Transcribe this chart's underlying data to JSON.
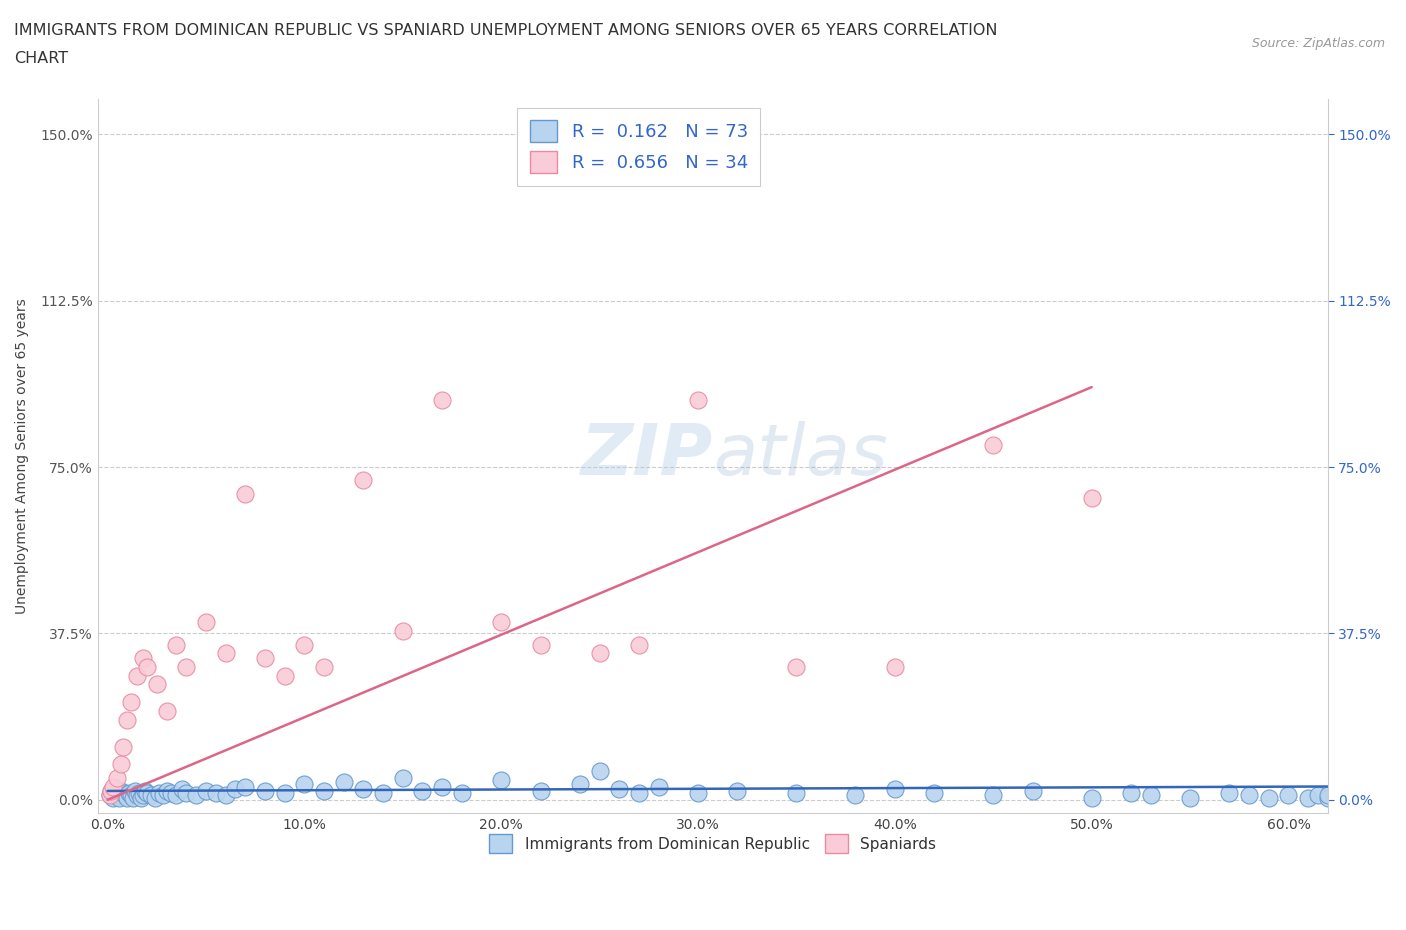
{
  "title_line1": "IMMIGRANTS FROM DOMINICAN REPUBLIC VS SPANIARD UNEMPLOYMENT AMONG SENIORS OVER 65 YEARS CORRELATION",
  "title_line2": "CHART",
  "source": "Source: ZipAtlas.com",
  "ylabel": "Unemployment Among Seniors over 65 years",
  "x_ticks": [
    0.0,
    10.0,
    20.0,
    30.0,
    40.0,
    50.0,
    60.0
  ],
  "y_ticks": [
    0.0,
    37.5,
    75.0,
    112.5,
    150.0
  ],
  "xlim": [
    -0.5,
    62.0
  ],
  "ylim": [
    -3.0,
    158.0
  ],
  "blue_color": "#b8d4ee",
  "pink_color": "#f9ccd8",
  "blue_edge_color": "#6699cc",
  "pink_edge_color": "#e88aa0",
  "blue_line_color": "#3366bb",
  "pink_line_color": "#dd6688",
  "legend_color": "#3366cc",
  "grid_color": "#cccccc",
  "bg_color": "#ffffff",
  "blue_scatter_x": [
    0.1,
    0.2,
    0.3,
    0.4,
    0.5,
    0.6,
    0.7,
    0.8,
    0.9,
    1.0,
    1.1,
    1.2,
    1.3,
    1.4,
    1.5,
    1.6,
    1.7,
    1.8,
    1.9,
    2.0,
    2.2,
    2.4,
    2.6,
    2.8,
    3.0,
    3.2,
    3.5,
    3.8,
    4.0,
    4.5,
    5.0,
    5.5,
    6.0,
    6.5,
    7.0,
    8.0,
    9.0,
    10.0,
    11.0,
    12.0,
    13.0,
    14.0,
    15.0,
    16.0,
    17.0,
    18.0,
    20.0,
    22.0,
    24.0,
    25.0,
    26.0,
    27.0,
    28.0,
    30.0,
    32.0,
    35.0,
    38.0,
    40.0,
    42.0,
    45.0,
    47.0,
    50.0,
    52.0,
    53.0,
    55.0,
    57.0,
    58.0,
    59.0,
    60.0,
    61.0,
    61.5,
    62.0,
    62.0
  ],
  "blue_scatter_y": [
    1.0,
    2.0,
    0.5,
    1.5,
    1.0,
    0.5,
    2.0,
    1.5,
    1.0,
    0.5,
    1.5,
    1.0,
    0.5,
    2.0,
    1.0,
    1.5,
    0.5,
    1.0,
    2.0,
    1.5,
    1.0,
    0.5,
    1.5,
    1.0,
    2.0,
    1.5,
    1.0,
    2.5,
    1.5,
    1.0,
    2.0,
    1.5,
    1.0,
    2.5,
    3.0,
    2.0,
    1.5,
    3.5,
    2.0,
    4.0,
    2.5,
    1.5,
    5.0,
    2.0,
    3.0,
    1.5,
    4.5,
    2.0,
    3.5,
    6.5,
    2.5,
    1.5,
    3.0,
    1.5,
    2.0,
    1.5,
    1.0,
    2.5,
    1.5,
    1.0,
    2.0,
    0.5,
    1.5,
    1.0,
    0.5,
    1.5,
    1.0,
    0.5,
    1.0,
    0.5,
    1.0,
    0.5,
    1.0
  ],
  "pink_scatter_x": [
    0.1,
    0.2,
    0.3,
    0.5,
    0.7,
    0.8,
    1.0,
    1.2,
    1.5,
    1.8,
    2.0,
    2.5,
    3.0,
    3.5,
    4.0,
    5.0,
    6.0,
    7.0,
    8.0,
    9.0,
    10.0,
    11.0,
    13.0,
    15.0,
    17.0,
    20.0,
    22.0,
    25.0,
    27.0,
    30.0,
    35.0,
    40.0,
    45.0,
    50.0
  ],
  "pink_scatter_y": [
    1.0,
    2.0,
    3.0,
    5.0,
    8.0,
    12.0,
    18.0,
    22.0,
    28.0,
    32.0,
    30.0,
    26.0,
    20.0,
    35.0,
    30.0,
    40.0,
    33.0,
    69.0,
    32.0,
    28.0,
    35.0,
    30.0,
    72.0,
    38.0,
    90.0,
    40.0,
    35.0,
    33.0,
    35.0,
    90.0,
    30.0,
    30.0,
    80.0,
    68.0
  ],
  "blue_trend_x": [
    0.0,
    62.0
  ],
  "blue_trend_y": [
    2.0,
    3.0
  ],
  "pink_trend_x": [
    0.0,
    50.0
  ],
  "pink_trend_y": [
    0.0,
    93.0
  ],
  "watermark_text": "ZIPatlas",
  "legend_R_blue": "0.162",
  "legend_N_blue": "73",
  "legend_R_pink": "0.656",
  "legend_N_pink": "34"
}
